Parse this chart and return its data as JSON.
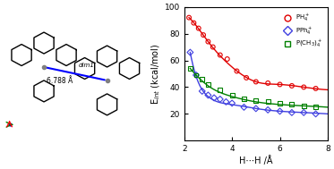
{
  "title": "",
  "xlabel": "H⋯H /Å",
  "ylabel": "E$_{int}$ (kcal/mol)",
  "xlim": [
    2,
    8
  ],
  "ylim": [
    0,
    100
  ],
  "xticks": [
    2,
    4,
    6,
    8
  ],
  "yticks": [
    20,
    40,
    60,
    80,
    100
  ],
  "ph4_scatter_x": [
    2.2,
    2.4,
    2.6,
    2.8,
    3.0,
    3.2,
    3.5,
    3.8,
    4.2,
    4.6,
    5.0,
    5.5,
    6.0,
    6.5,
    7.0,
    7.5
  ],
  "ph4_scatter_y": [
    92,
    88,
    84,
    79,
    74,
    70,
    64,
    61,
    52,
    47,
    44,
    43,
    42,
    41,
    40,
    39
  ],
  "pph4_scatter_x": [
    2.25,
    2.5,
    2.75,
    3.0,
    3.25,
    3.5,
    3.75,
    4.0,
    4.5,
    5.0,
    5.5,
    6.0,
    6.5,
    7.0,
    7.5
  ],
  "pph4_scatter_y": [
    66,
    49,
    37,
    34,
    32,
    31,
    29,
    28,
    25,
    24,
    23,
    22,
    21,
    21,
    20
  ],
  "pme4_scatter_x": [
    2.25,
    2.5,
    2.75,
    3.0,
    3.5,
    4.0,
    4.5,
    5.0,
    5.5,
    6.0,
    6.5,
    7.0,
    7.5
  ],
  "pme4_scatter_y": [
    54,
    49,
    46,
    42,
    38,
    34,
    31,
    30,
    29,
    28,
    27,
    26,
    25
  ],
  "ph4_fit_x": [
    2.2,
    2.5,
    3.0,
    4.0,
    5.0,
    6.0,
    7.0,
    8.0
  ],
  "ph4_fit_y": [
    92,
    86,
    74,
    55,
    44,
    42,
    40,
    38
  ],
  "pph4_fit_x": [
    2.25,
    2.5,
    3.0,
    4.0,
    5.0,
    6.0,
    7.0,
    8.0
  ],
  "pph4_fit_y": [
    66,
    48,
    33,
    27,
    24,
    22,
    21,
    20
  ],
  "pme4_fit_x": [
    2.25,
    2.5,
    3.0,
    4.0,
    5.0,
    6.0,
    7.0,
    8.0
  ],
  "pme4_fit_y": [
    54,
    49,
    41,
    33,
    29,
    27,
    26,
    25
  ],
  "ph4_color": "#e00000",
  "pph4_color": "#4040e0",
  "pme4_color": "#008000",
  "bg_color": "#ffffff",
  "legend_labels": [
    "PH$_4^+$",
    "PPh$_4^+$",
    "P(CH$_3$)$_4^+$"
  ],
  "label_fontsize": 7,
  "tick_fontsize": 6.5
}
